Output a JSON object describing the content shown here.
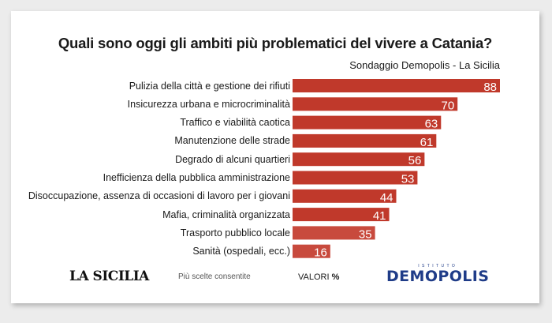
{
  "title": "Quali sono oggi gli ambiti più problematici del vivere a Catania?",
  "source": "Sondaggio Demopolis - La Sicilia",
  "note": "Più scelte consentite",
  "unit_label": "VALORI",
  "unit_symbol": "%",
  "logo_left": "LA SICILIA",
  "logo_right_tag": "ISTITUTO",
  "logo_right": "DEMOPOLIS",
  "colors": {
    "bar": "#c0392b",
    "bar_end": "#c84a3d",
    "label": "#ffffff"
  },
  "chart_data": {
    "type": "bar",
    "orientation": "horizontal",
    "title": "Quali sono oggi gli ambiti più problematici del vivere a Catania?",
    "xlim": [
      0,
      88
    ],
    "categories": [
      "Pulizia della città e gestione dei rifiuti",
      "Insicurezza urbana e microcriminalità",
      "Traffico e viabilità caotica",
      "Manutenzione delle strade",
      "Degrado di alcuni quartieri",
      "Inefficienza della pubblica amministrazione",
      "Disoccupazione, assenza di occasioni di lavoro per i giovani",
      "Mafia, criminalità organizzata",
      "Trasporto pubblico locale",
      "Sanità (ospedali, ecc.)"
    ],
    "values": [
      88,
      70,
      63,
      61,
      56,
      53,
      44,
      41,
      35,
      16
    ],
    "unit": "%"
  }
}
